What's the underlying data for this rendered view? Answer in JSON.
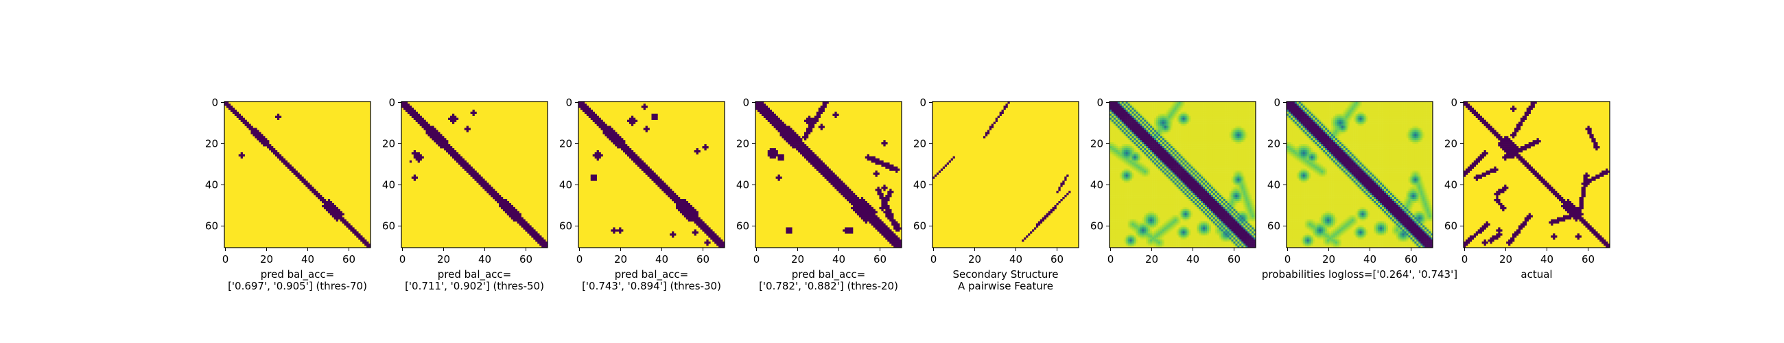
{
  "palette": {
    "yellow": "#fde725",
    "purple": "#440154",
    "teal": "#21918c",
    "green": "#5ec962",
    "lightgreen": "#b5de2b",
    "blue": "#3b528b"
  },
  "chart_data": [
    {
      "type": "heatmap",
      "mode": "binary",
      "title": "",
      "caption_lines": [
        "pred bal_acc=",
        "['0.697', '0.905'] (thres-70)"
      ],
      "x_ticks": [
        0,
        20,
        40,
        60
      ],
      "y_ticks": [
        0,
        20,
        40,
        60
      ],
      "xlim": [
        0,
        71
      ],
      "ylim": [
        71,
        0
      ],
      "diagonal_half_width": 1.5,
      "bulges": [
        [
          17,
          2.5
        ],
        [
          36,
          1.5
        ],
        [
          53,
          3
        ]
      ],
      "blobs": [
        [
          26,
          8,
          1.4
        ],
        [
          7,
          26,
          1.4
        ]
      ],
      "lines": []
    },
    {
      "type": "heatmap",
      "mode": "binary",
      "title": "",
      "caption_lines": [
        "pred bal_acc=",
        "['0.711', '0.902'] (thres-50)"
      ],
      "x_ticks": [
        0,
        20,
        40,
        60
      ],
      "y_ticks": [
        0,
        20,
        40,
        60
      ],
      "xlim": [
        0,
        71
      ],
      "ylim": [
        71,
        0
      ],
      "diagonal_half_width": 2,
      "bulges": [
        [
          17,
          3
        ],
        [
          36,
          2
        ],
        [
          53,
          3.5
        ]
      ],
      "blobs": [
        [
          27,
          8,
          2
        ],
        [
          37,
          6,
          1.2
        ],
        [
          8,
          25,
          2
        ],
        [
          25,
          6,
          1.2
        ],
        [
          13,
          32,
          1
        ],
        [
          5,
          35,
          1
        ],
        [
          29,
          4,
          0.9
        ]
      ],
      "lines": []
    },
    {
      "type": "heatmap",
      "mode": "binary",
      "title": "",
      "caption_lines": [
        "pred bal_acc=",
        "['0.743', '0.894'] (thres-30)"
      ],
      "x_ticks": [
        0,
        20,
        40,
        60
      ],
      "y_ticks": [
        0,
        20,
        40,
        60
      ],
      "xlim": [
        0,
        71
      ],
      "ylim": [
        71,
        0
      ],
      "diagonal_half_width": 2.5,
      "bulges": [
        [
          17,
          3.5
        ],
        [
          36,
          2.5
        ],
        [
          53,
          4
        ]
      ],
      "blobs": [
        [
          26,
          9,
          2.2
        ],
        [
          37,
          7,
          1.5
        ],
        [
          9,
          26,
          2.2
        ],
        [
          7,
          37,
          1.5
        ],
        [
          24,
          58,
          1.2
        ],
        [
          22,
          62,
          1
        ],
        [
          63,
          20,
          1.4
        ],
        [
          63,
          17,
          1
        ],
        [
          2,
          32,
          1.2
        ],
        [
          64,
          57,
          1
        ],
        [
          65,
          46,
          1
        ],
        [
          69,
          63,
          1
        ],
        [
          13,
          33,
          1.2
        ]
      ],
      "lines": []
    },
    {
      "type": "heatmap",
      "mode": "binary",
      "title": "",
      "caption_lines": [
        "pred bal_acc=",
        "['0.782', '0.882'] (thres-20)"
      ],
      "x_ticks": [
        0,
        20,
        40,
        60
      ],
      "y_ticks": [
        0,
        20,
        40,
        60
      ],
      "xlim": [
        0,
        71
      ],
      "ylim": [
        71,
        0
      ],
      "diagonal_half_width": 3,
      "bulges": [
        [
          17,
          4
        ],
        [
          36,
          3
        ],
        [
          53,
          5
        ]
      ],
      "blobs": [
        [
          25,
          8,
          2.4
        ],
        [
          27,
          12,
          1.8
        ],
        [
          37,
          11,
          1.4
        ],
        [
          9,
          26,
          2.2
        ],
        [
          12,
          32,
          1.4
        ],
        [
          6,
          39,
          1.4
        ],
        [
          63,
          16,
          1.6
        ],
        [
          63,
          46,
          1.6
        ],
        [
          63,
          44,
          1.2
        ],
        [
          35,
          59,
          1.4
        ],
        [
          20,
          63,
          1.4
        ],
        [
          42,
          63,
          1.2
        ]
      ],
      "lines": [
        [
          [
            0,
            34
          ],
          [
            17,
            24
          ],
          1.2
        ],
        [
          [
            27,
            55
          ],
          [
            33,
            69
          ],
          1.2
        ],
        [
          [
            43,
            60
          ],
          [
            62,
            69
          ],
          1.2
        ],
        [
          [
            54,
            64
          ],
          [
            62,
            70
          ],
          1.2
        ],
        [
          [
            44,
            66
          ],
          [
            52,
            62
          ],
          1.2
        ]
      ]
    },
    {
      "type": "heatmap",
      "mode": "binary",
      "title": "",
      "caption_lines": [
        "Secondary Structure",
        "A pairwise Feature"
      ],
      "x_ticks": [
        0,
        20,
        40,
        60
      ],
      "y_ticks": [
        0,
        20,
        40,
        60
      ],
      "xlim": [
        0,
        71
      ],
      "ylim": [
        71,
        0
      ],
      "diagonal_half_width": 0,
      "bulges": [],
      "blobs": [],
      "lines": [
        [
          [
            37,
            0
          ],
          [
            27,
            10
          ],
          0.5
        ],
        [
          [
            17,
            25
          ],
          [
            0,
            37
          ],
          0.5
        ],
        [
          [
            68,
            44
          ],
          [
            44,
            67
          ],
          0.5
        ],
        [
          [
            44,
            61
          ],
          [
            36,
            66
          ],
          0.5
        ]
      ]
    },
    {
      "type": "heatmap",
      "mode": "probability",
      "title": "",
      "caption_lines": [],
      "x_ticks": [
        0,
        20,
        40,
        60
      ],
      "y_ticks": [
        0,
        20,
        40,
        60
      ],
      "xlim": [
        0,
        71
      ],
      "ylim": [
        71,
        0
      ],
      "diagonal_half_width": 3,
      "side_stripes": 6,
      "blobs": [
        [
          25,
          8,
          2.2
        ],
        [
          10,
          26,
          2.2
        ],
        [
          36,
          8,
          1.6
        ],
        [
          8,
          36,
          1.6
        ],
        [
          27,
          12,
          1.5
        ],
        [
          12,
          27,
          1.5
        ],
        [
          63,
          16,
          2
        ],
        [
          16,
          63,
          2
        ],
        [
          58,
          20,
          2
        ],
        [
          62,
          46,
          1.8
        ],
        [
          46,
          62,
          1.8
        ],
        [
          64,
          36,
          1.6
        ],
        [
          38,
          63,
          1.6
        ],
        [
          65,
          57,
          1.8
        ],
        [
          57,
          65,
          1.8
        ],
        [
          55,
          37,
          1.5
        ],
        [
          68,
          10,
          1.5
        ]
      ],
      "lines": [
        [
          [
            0,
            34
          ],
          [
            17,
            22
          ],
          1.6
        ],
        [
          [
            22,
            0
          ],
          [
            34,
            17
          ],
          1.6
        ],
        [
          [
            60,
            11
          ],
          [
            69,
            24
          ],
          1.6
        ],
        [
          [
            58,
            32
          ],
          [
            68,
            20
          ],
          1.6
        ],
        [
          [
            36,
            63
          ],
          [
            56,
            70
          ],
          1.6
        ],
        [
          [
            44,
            62
          ],
          [
            63,
            54
          ],
          1.6
        ]
      ]
    },
    {
      "type": "heatmap",
      "mode": "probability",
      "title": "",
      "caption_lines": [
        "probabilities logloss=['0.264', '0.743']"
      ],
      "x_ticks": [
        0,
        20,
        40,
        60
      ],
      "y_ticks": [
        0,
        20,
        40,
        60
      ],
      "xlim": [
        0,
        71
      ],
      "ylim": [
        71,
        0
      ],
      "diagonal_half_width": 3,
      "side_stripes": 4,
      "blobs": [
        [
          25,
          8,
          2.2
        ],
        [
          10,
          26,
          2.2
        ],
        [
          36,
          8,
          1.6
        ],
        [
          8,
          36,
          1.6
        ],
        [
          27,
          12,
          1.5
        ],
        [
          12,
          27,
          1.5
        ],
        [
          63,
          16,
          2
        ],
        [
          16,
          63,
          2
        ],
        [
          58,
          20,
          2
        ],
        [
          62,
          46,
          1.8
        ],
        [
          46,
          62,
          1.8
        ],
        [
          64,
          36,
          1.6
        ],
        [
          38,
          63,
          1.6
        ],
        [
          65,
          57,
          1.8
        ],
        [
          57,
          65,
          1.8
        ],
        [
          55,
          37,
          1.5
        ],
        [
          68,
          10,
          1.5
        ]
      ],
      "lines": [
        [
          [
            0,
            34
          ],
          [
            17,
            22
          ],
          1.6
        ],
        [
          [
            22,
            0
          ],
          [
            34,
            17
          ],
          1.6
        ],
        [
          [
            60,
            11
          ],
          [
            69,
            24
          ],
          1.6
        ],
        [
          [
            58,
            32
          ],
          [
            68,
            20
          ],
          1.6
        ],
        [
          [
            36,
            63
          ],
          [
            56,
            70
          ],
          1.6
        ],
        [
          [
            44,
            62
          ],
          [
            63,
            54
          ],
          1.6
        ]
      ]
    },
    {
      "type": "heatmap",
      "mode": "binary",
      "title": "",
      "caption_lines": [
        "actual"
      ],
      "x_ticks": [
        0,
        20,
        40,
        60
      ],
      "y_ticks": [
        0,
        20,
        40,
        60
      ],
      "xlim": [
        0,
        71
      ],
      "ylim": [
        71,
        0
      ],
      "diagonal_half_width": 1.5,
      "bulges": [
        [
          22,
          4
        ],
        [
          53,
          3
        ]
      ],
      "blobs": [
        [
          63,
          17,
          1.2
        ],
        [
          3,
          24,
          1
        ],
        [
          2,
          33,
          1
        ],
        [
          66,
          56,
          1.2
        ],
        [
          66,
          44,
          1
        ],
        [
          69,
          10,
          1
        ]
      ],
      "lines": [
        [
          [
            0,
            34
          ],
          [
            16,
            24
          ],
          1
        ],
        [
          [
            25,
            10
          ],
          [
            35,
            0
          ],
          1
        ],
        [
          [
            60,
            11
          ],
          [
            70,
            0
          ],
          1
        ],
        [
          [
            27,
            20
          ],
          [
            19,
            36
          ],
          1
        ],
        [
          [
            37,
            6
          ],
          [
            33,
            15
          ],
          1
        ],
        [
          [
            42,
            20
          ],
          [
            45,
            16
          ],
          1
        ],
        [
          [
            65,
            17
          ],
          [
            68,
            13
          ],
          1
        ],
        [
          [
            48,
            16
          ],
          [
            52,
            19
          ],
          1
        ],
        [
          [
            56,
            32
          ],
          [
            69,
            22
          ],
          1
        ],
        [
          [
            40,
            59
          ],
          [
            34,
            70
          ],
          1
        ],
        [
          [
            59,
            43
          ],
          [
            56,
            52
          ],
          1
        ],
        [
          [
            36,
            60
          ],
          [
            52,
            57
          ],
          1
        ],
        [
          [
            13,
            61
          ],
          [
            22,
            65
          ],
          1
        ]
      ]
    }
  ]
}
